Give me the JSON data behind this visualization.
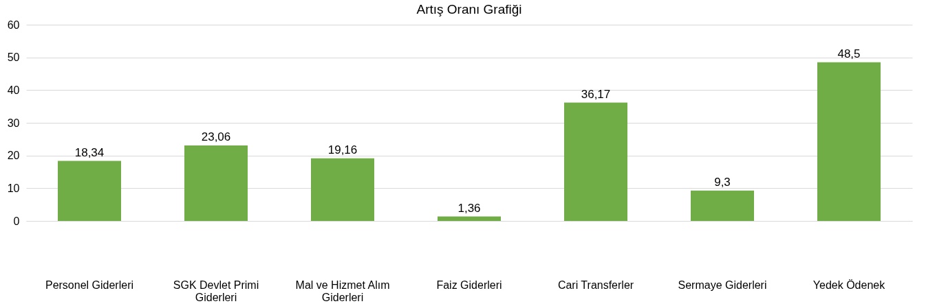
{
  "chart_data": {
    "type": "bar",
    "title": "Artış Oranı Grafiği",
    "categories": [
      "Personel Giderleri",
      "SGK Devlet Primi Giderleri",
      "Mal ve Hizmet Alım Giderleri",
      "Faiz Giderleri",
      "Cari Transferler",
      "Sermaye Giderleri",
      "Yedek Ödenek"
    ],
    "values": [
      18.34,
      23.06,
      19.16,
      1.36,
      36.17,
      9.3,
      48.5
    ],
    "value_labels": [
      "18,34",
      "23,06",
      "19,16",
      "1,36",
      "36,17",
      "9,3",
      "48,5"
    ],
    "color": "#70ad47",
    "ylim": [
      0,
      60
    ],
    "yticks": [
      0,
      10,
      20,
      30,
      40,
      50,
      60
    ],
    "grid": "y"
  }
}
